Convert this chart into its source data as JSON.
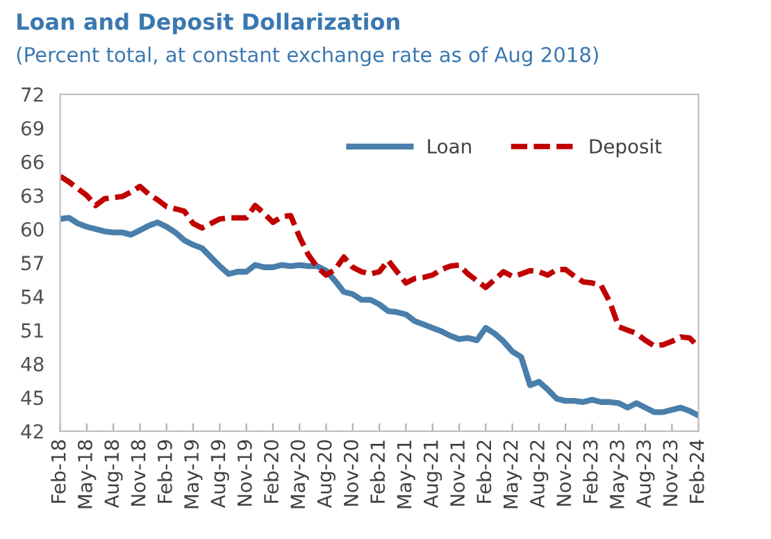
{
  "chart_data": {
    "type": "line",
    "title": "Loan and Deposit Dollarization",
    "subtitle": "(Percent total, at constant exchange rate as of Aug 2018)",
    "categories": [
      "Feb-18",
      null,
      null,
      "May-18",
      null,
      null,
      "Aug-18",
      null,
      null,
      "Nov-18",
      null,
      null,
      "Feb-19",
      null,
      null,
      "May-19",
      null,
      null,
      "Aug-19",
      null,
      null,
      "Nov-19",
      null,
      null,
      "Feb-20",
      null,
      null,
      "May-20",
      null,
      null,
      "Aug-20",
      null,
      null,
      "Nov-20",
      null,
      null,
      "Feb-21",
      null,
      null,
      "May-21",
      null,
      null,
      "Aug-21",
      null,
      null,
      "Nov-21",
      null,
      null,
      "Feb-22",
      null,
      null,
      "May-22",
      null,
      null,
      "Aug-22",
      null,
      null,
      "Nov-22",
      null,
      null,
      "Feb-23",
      null,
      null,
      "May-23",
      null,
      null,
      "Aug-23",
      null,
      null,
      "Nov-23",
      null,
      null,
      "Feb-24"
    ],
    "series": [
      {
        "name": "Loan",
        "color": "#4a7eab",
        "line_style": "solid",
        "values": [
          60.9,
          61.0,
          60.5,
          60.2,
          60.0,
          59.8,
          59.7,
          59.7,
          59.5,
          59.9,
          60.3,
          60.6,
          60.2,
          59.7,
          59.0,
          58.6,
          58.3,
          57.5,
          56.7,
          56.0,
          56.2,
          56.2,
          56.8,
          56.6,
          56.6,
          56.8,
          56.7,
          56.8,
          56.7,
          56.7,
          56.3,
          55.4,
          54.4,
          54.2,
          53.7,
          53.7,
          53.3,
          52.7,
          52.6,
          52.4,
          51.8,
          51.5,
          51.2,
          50.9,
          50.5,
          50.2,
          50.3,
          50.1,
          51.2,
          50.7,
          50.0,
          49.1,
          48.6,
          46.1,
          46.4,
          45.7,
          44.9,
          44.7,
          44.7,
          44.6,
          44.8,
          44.6,
          44.6,
          44.5,
          44.1,
          44.5,
          44.1,
          43.7,
          43.7,
          43.9,
          44.1,
          43.8,
          43.4
        ]
      },
      {
        "name": "Deposit",
        "color": "#c00000",
        "line_style": "dashed",
        "values": [
          64.7,
          64.2,
          63.6,
          63.0,
          62.1,
          62.7,
          62.8,
          62.9,
          63.3,
          63.8,
          63.1,
          62.6,
          62.0,
          61.8,
          61.6,
          60.5,
          60.1,
          60.5,
          60.9,
          61.0,
          61.0,
          61.0,
          62.1,
          61.4,
          60.6,
          61.1,
          61.2,
          59.3,
          57.7,
          56.6,
          55.9,
          56.4,
          57.5,
          56.6,
          56.2,
          56.0,
          56.2,
          57.2,
          56.2,
          55.2,
          55.6,
          55.7,
          55.9,
          56.4,
          56.7,
          56.8,
          56.0,
          55.4,
          54.8,
          55.5,
          56.2,
          55.8,
          56.0,
          56.3,
          56.2,
          55.9,
          56.4,
          56.4,
          55.8,
          55.3,
          55.2,
          55.0,
          53.5,
          51.3,
          51.0,
          50.7,
          50.1,
          49.6,
          49.7,
          50.0,
          50.4,
          50.3,
          49.5
        ]
      }
    ],
    "ylim": [
      42,
      72
    ],
    "yticks": [
      42,
      45,
      48,
      51,
      54,
      57,
      60,
      63,
      66,
      69,
      72
    ],
    "grid": false,
    "legend": "top right"
  }
}
